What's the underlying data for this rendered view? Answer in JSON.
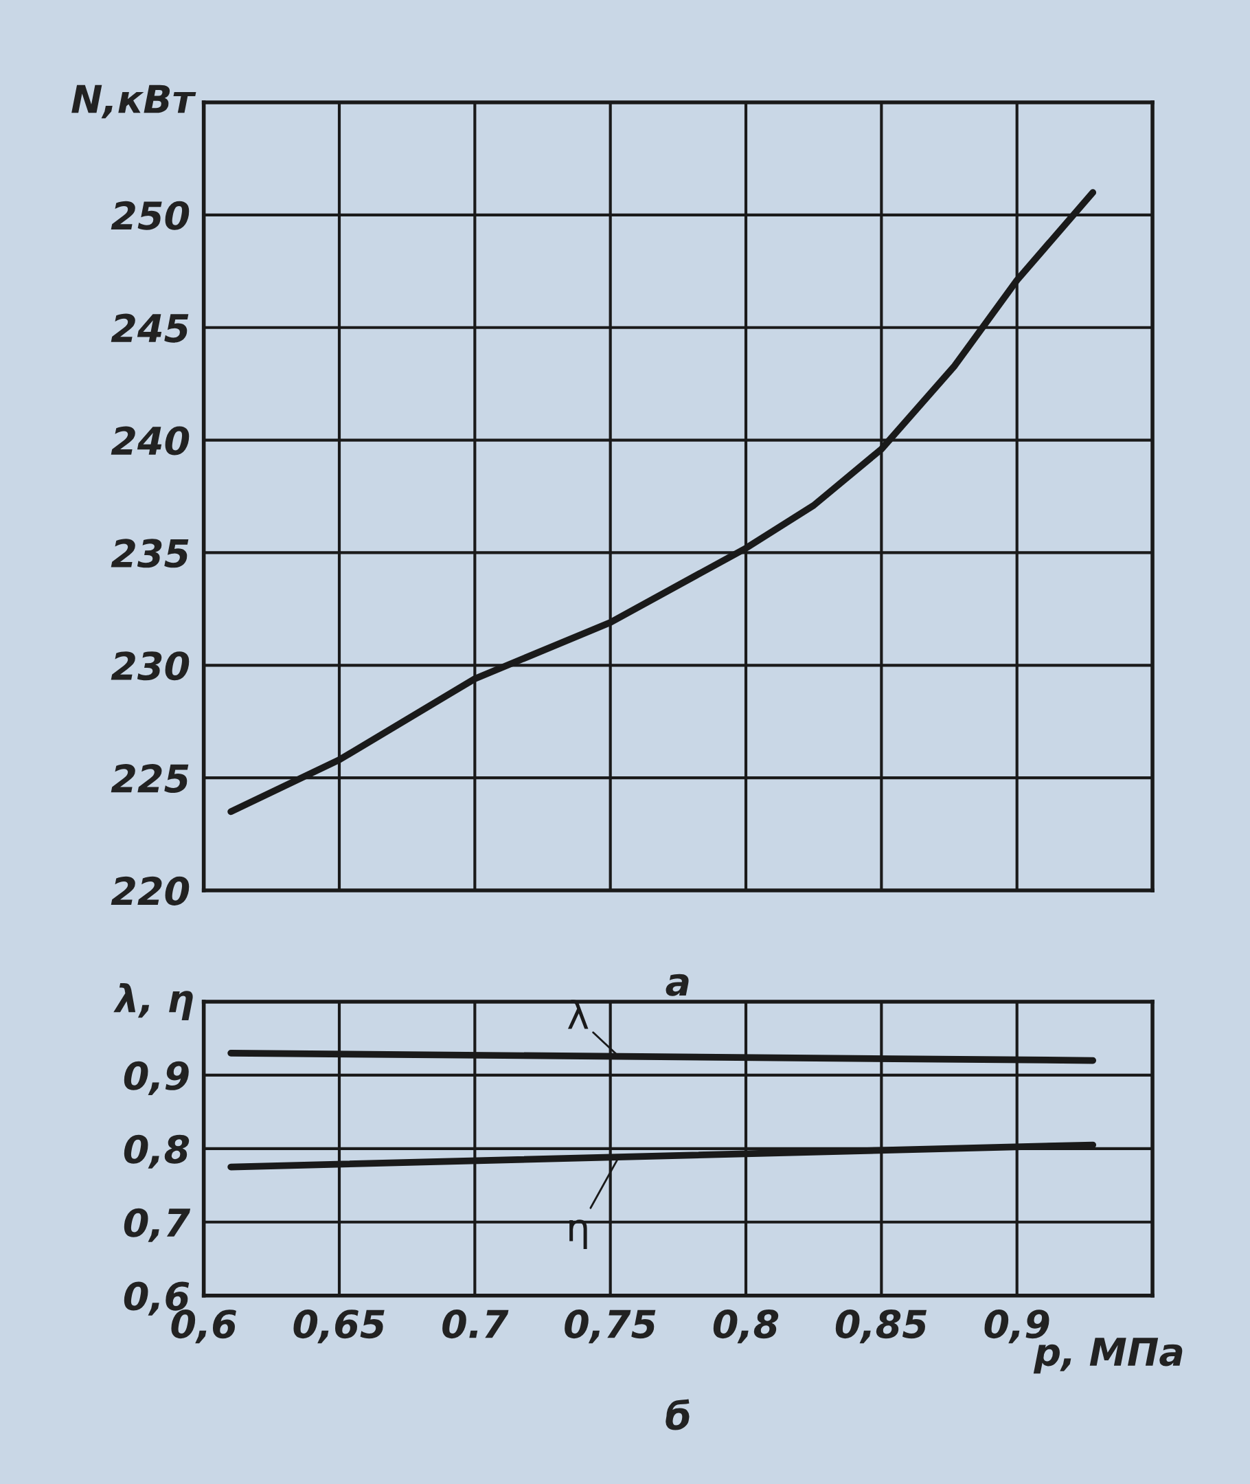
{
  "chart_data": [
    {
      "type": "line",
      "ylabel": "N,кВт",
      "annotations": [
        "а"
      ],
      "tick_labels": "y",
      "grid": true,
      "marker": "none",
      "line_style": "solid",
      "xlim": [
        0.6,
        0.95
      ],
      "xticks": [
        0.6,
        0.65,
        0.7,
        0.75,
        0.8,
        0.85,
        0.9,
        0.95
      ],
      "ylim": [
        220,
        255
      ],
      "yticks": [
        220,
        225,
        230,
        235,
        240,
        245,
        250,
        {
          "value": 255,
          "label": null
        }
      ],
      "series": [
        {
          "color": "#1a1a1a",
          "x": [
            0.61,
            0.65,
            0.7,
            0.75,
            0.8,
            0.825,
            0.85,
            0.877,
            0.9,
            0.928
          ],
          "values": [
            223.5,
            225.8,
            229.4,
            231.9,
            235.2,
            237.1,
            239.6,
            243.3,
            247.1,
            251
          ]
        }
      ]
    },
    {
      "type": "line",
      "ylabel": "λ, η",
      "xlabel": "p, МПа",
      "annotations": [
        "б"
      ],
      "grid": true,
      "marker": "none",
      "line_style": "solid",
      "xlim": [
        0.6,
        0.95
      ],
      "xticks": [
        {
          "value": 0.6,
          "label": "0,6"
        },
        {
          "value": 0.65,
          "label": "0,65"
        },
        {
          "value": 0.7,
          "label": "0.7"
        },
        {
          "value": 0.75,
          "label": "0,75"
        },
        {
          "value": 0.8,
          "label": "0,8"
        },
        {
          "value": 0.85,
          "label": "0,85"
        },
        {
          "value": 0.9,
          "label": "0,9"
        },
        {
          "value": 0.95,
          "label": null
        }
      ],
      "ylim": [
        0.6,
        1.0
      ],
      "yticks": [
        {
          "value": 0.6,
          "label": "0,6"
        },
        {
          "value": 0.7,
          "label": "0,7"
        },
        {
          "value": 0.8,
          "label": "0,8"
        },
        {
          "value": 0.9,
          "label": "0,9"
        },
        {
          "value": 1.0,
          "label": null
        }
      ],
      "series": [
        {
          "name": "λ",
          "color": "#1a1a1a",
          "x": [
            0.61,
            0.928
          ],
          "values": [
            0.93,
            0.92
          ]
        },
        {
          "name": "η",
          "color": "#1a1a1a",
          "x": [
            0.61,
            0.928
          ],
          "values": [
            0.775,
            0.805
          ]
        }
      ]
    }
  ]
}
